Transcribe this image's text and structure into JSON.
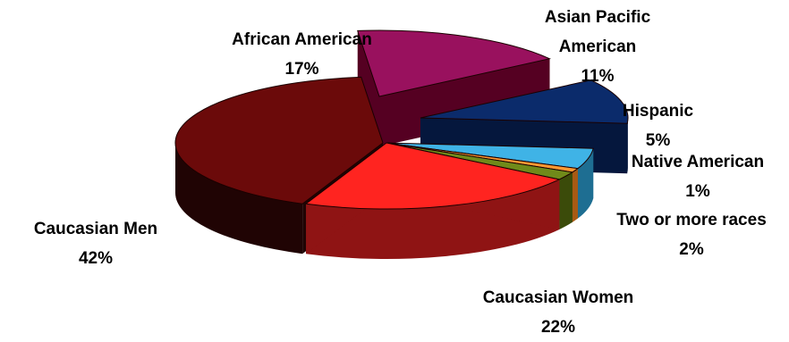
{
  "chart_data": {
    "type": "pie",
    "style": "3d-exploded",
    "slices": [
      {
        "name_lines": [
          "African American"
        ],
        "value": 17,
        "value_label": "17%",
        "color": "#99115e",
        "side_color": "#550022"
      },
      {
        "name_lines": [
          "Asian Pacific",
          "American"
        ],
        "value": 11,
        "value_label": "11%",
        "color": "#0b2b6b",
        "side_color": "#05173d"
      },
      {
        "name_lines": [
          "Hispanic"
        ],
        "value": 5,
        "value_label": "5%",
        "color": "#3fb3e6",
        "side_color": "#1e6e92"
      },
      {
        "name_lines": [
          "Native American"
        ],
        "value": 1,
        "value_label": "1%",
        "color": "#ff9933",
        "side_color": "#a85a14"
      },
      {
        "name_lines": [
          "Two or more races"
        ],
        "value": 2,
        "value_label": "2%",
        "color": "#708a1a",
        "side_color": "#3b4b0a"
      },
      {
        "name_lines": [
          "Caucasian Women"
        ],
        "value": 22,
        "value_label": "22%",
        "color": "#ff2420",
        "side_color": "#8f1414"
      },
      {
        "name_lines": [
          "Caucasian Men"
        ],
        "value": 42,
        "value_label": "42%",
        "color": "#6b0a0a",
        "side_color": "#200404"
      }
    ],
    "legend": "none",
    "data_labels": "outside"
  }
}
